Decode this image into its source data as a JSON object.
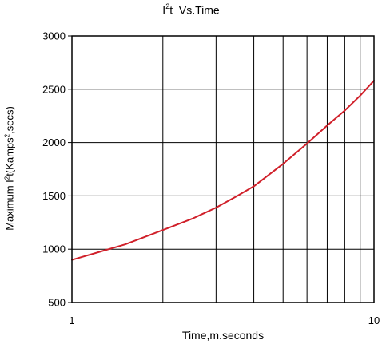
{
  "chart_data": {
    "type": "line",
    "title": {
      "base": "I",
      "sup": "2",
      "rest": "t  Vs.Time"
    },
    "xlabel": "Time,m.seconds",
    "ylabel": {
      "part1": "Maximum I",
      "sup1": "2",
      "part2": "t(Kamps",
      "sup2": "2",
      "part3": ",secs)"
    },
    "x_scale": "log",
    "xlim": [
      1,
      10
    ],
    "ylim": [
      500,
      3000
    ],
    "x_ticks": [
      1,
      10
    ],
    "y_ticks": [
      500,
      1000,
      1500,
      2000,
      2500,
      3000
    ],
    "grid": true,
    "line_color": "#d0202a",
    "series": [
      {
        "x": [
          1,
          1.5,
          2,
          2.5,
          3,
          3.5,
          4,
          5,
          6,
          7,
          8,
          9,
          10
        ],
        "y": [
          900,
          1045,
          1180,
          1285,
          1390,
          1495,
          1590,
          1800,
          1990,
          2160,
          2300,
          2440,
          2580
        ]
      }
    ]
  }
}
